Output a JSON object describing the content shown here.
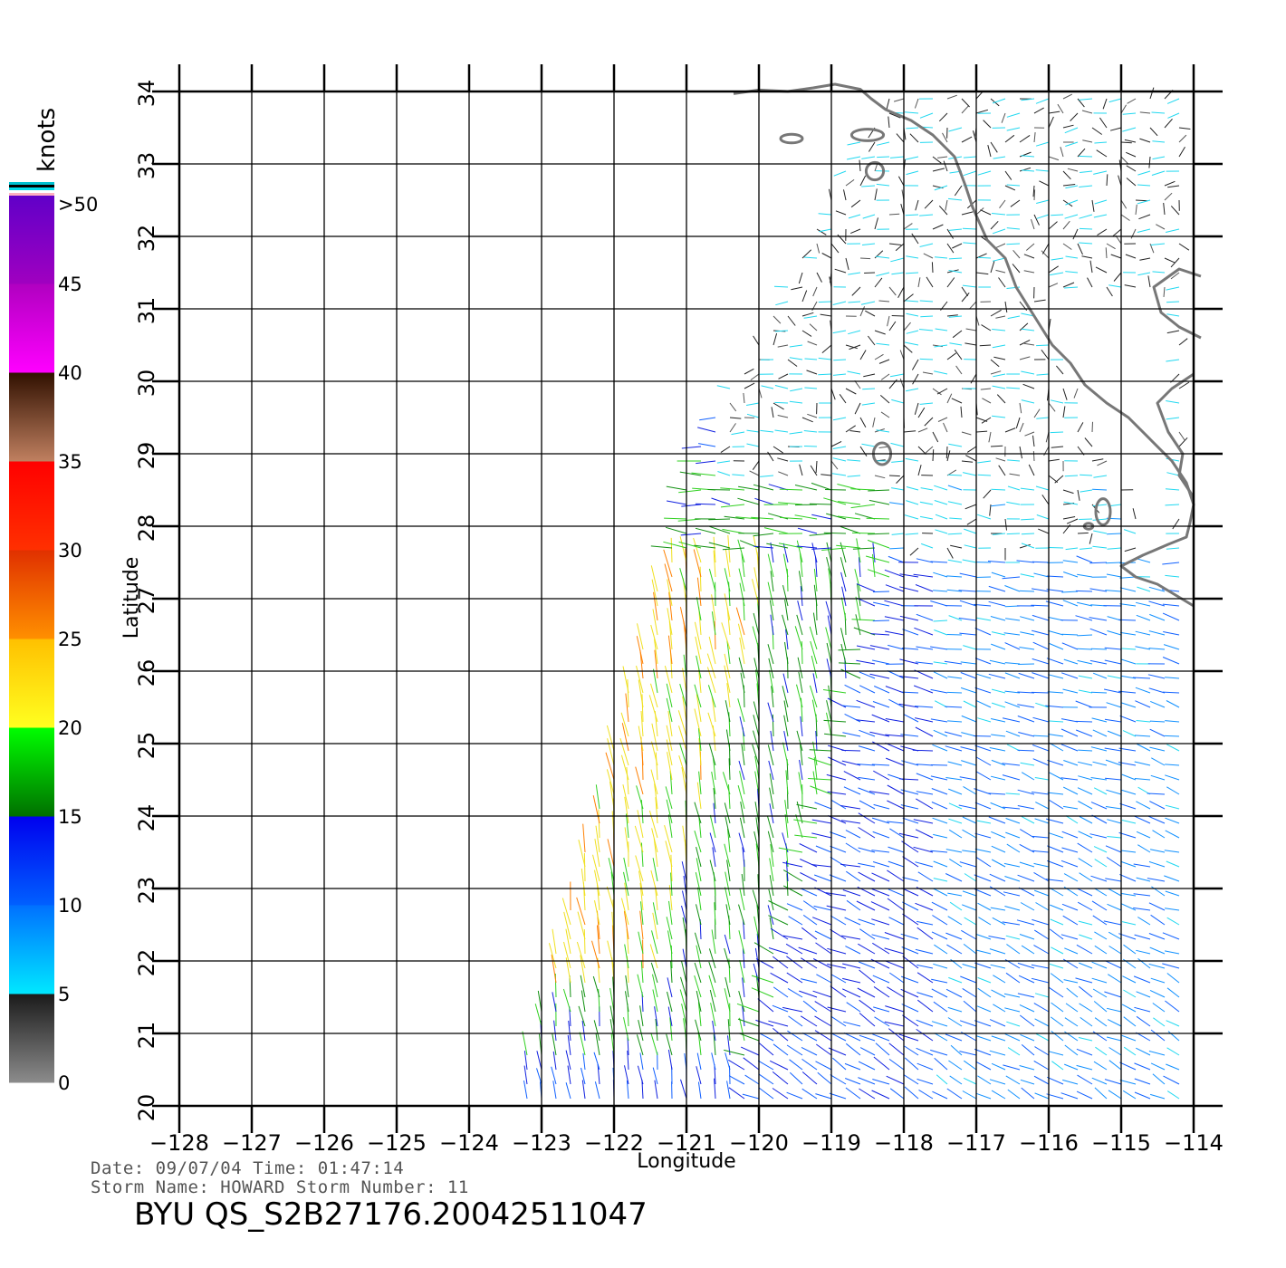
{
  "map": {
    "x_label": "Longitude",
    "y_label": "Latitude",
    "lon_ticks": [
      "−128",
      "−127",
      "−126",
      "−125",
      "−124",
      "−123",
      "−122",
      "−121",
      "−120",
      "−119",
      "−118",
      "−117",
      "−116",
      "−115",
      "−114"
    ],
    "lat_ticks": [
      "20",
      "21",
      "22",
      "23",
      "24",
      "25",
      "26",
      "27",
      "28",
      "29",
      "30",
      "31",
      "32",
      "33",
      "34"
    ],
    "lon_range": [
      -128,
      -114
    ],
    "lat_range": [
      20,
      34
    ],
    "coastline_color": "#777777",
    "grid_color": "#000000"
  },
  "colorbar": {
    "unit": "knots",
    "labels": [
      "0",
      "5",
      "10",
      "15",
      "20",
      "25",
      "30",
      "35",
      "40",
      "45",
      ">50"
    ],
    "stops": [
      {
        "from": 0,
        "to": 5,
        "colors": [
          "#8c8c8c",
          "#1a1a1a"
        ]
      },
      {
        "from": 5,
        "to": 10,
        "colors": [
          "#00e8ff",
          "#0070ff"
        ]
      },
      {
        "from": 10,
        "to": 15,
        "colors": [
          "#0060ff",
          "#0000ee"
        ]
      },
      {
        "from": 15,
        "to": 20,
        "colors": [
          "#007000",
          "#00ff00"
        ]
      },
      {
        "from": 20,
        "to": 25,
        "colors": [
          "#ffff20",
          "#ffc000"
        ]
      },
      {
        "from": 25,
        "to": 30,
        "colors": [
          "#ff9000",
          "#e03000"
        ]
      },
      {
        "from": 30,
        "to": 35,
        "colors": [
          "#ff3000",
          "#ff0000"
        ]
      },
      {
        "from": 35,
        "to": 40,
        "colors": [
          "#c08060",
          "#301000"
        ]
      },
      {
        "from": 40,
        "to": 45,
        "colors": [
          "#ff00ff",
          "#b000c0"
        ]
      },
      {
        "from": 45,
        "to": 50,
        "colors": [
          "#a000c0",
          "#6000c8"
        ]
      }
    ]
  },
  "info": {
    "date_line": "Date: 09/07/04   Time: 01:47:14",
    "storm_line": "Storm Name: HOWARD   Storm Number: 11",
    "file_id": "BYU QS_S2B27176.20042511047"
  }
}
